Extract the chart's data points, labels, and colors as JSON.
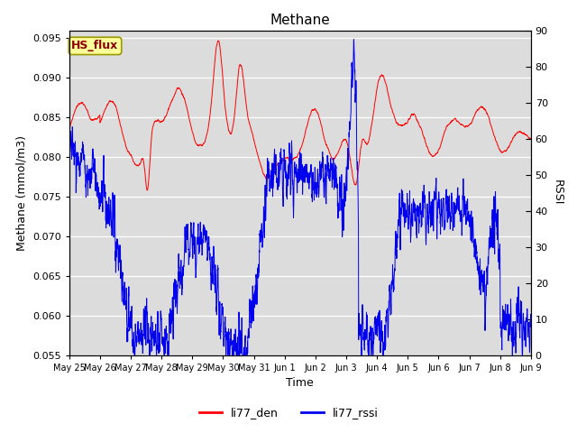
{
  "title": "Methane",
  "ylabel_left": "Methane (mmol/m3)",
  "ylabel_right": "RSSI",
  "xlabel": "Time",
  "ylim_left": [
    0.055,
    0.096
  ],
  "ylim_right": [
    0,
    90
  ],
  "yticks_left": [
    0.055,
    0.06,
    0.065,
    0.07,
    0.075,
    0.08,
    0.085,
    0.09,
    0.095
  ],
  "yticks_right": [
    0,
    10,
    20,
    30,
    40,
    50,
    60,
    70,
    80,
    90
  ],
  "color_red": "#FF0000",
  "color_blue": "#0000EE",
  "bg_color": "#DCDCDC",
  "legend_label_red": "li77_den",
  "legend_label_blue": "li77_rssi",
  "annotation_text": "HS_flux",
  "annotation_color": "#8B0000",
  "annotation_bg": "#FFFF99",
  "xtick_labels": [
    "May 25",
    "May 26",
    "May 27",
    "May 28",
    "May 29",
    "May 30",
    "May 31",
    "Jun 1",
    "Jun 2",
    "Jun 3",
    "Jun 4",
    "Jun 5",
    "Jun 6",
    "Jun 7",
    "Jun 8",
    "Jun 9"
  ],
  "n_points": 3000,
  "seed": 7
}
